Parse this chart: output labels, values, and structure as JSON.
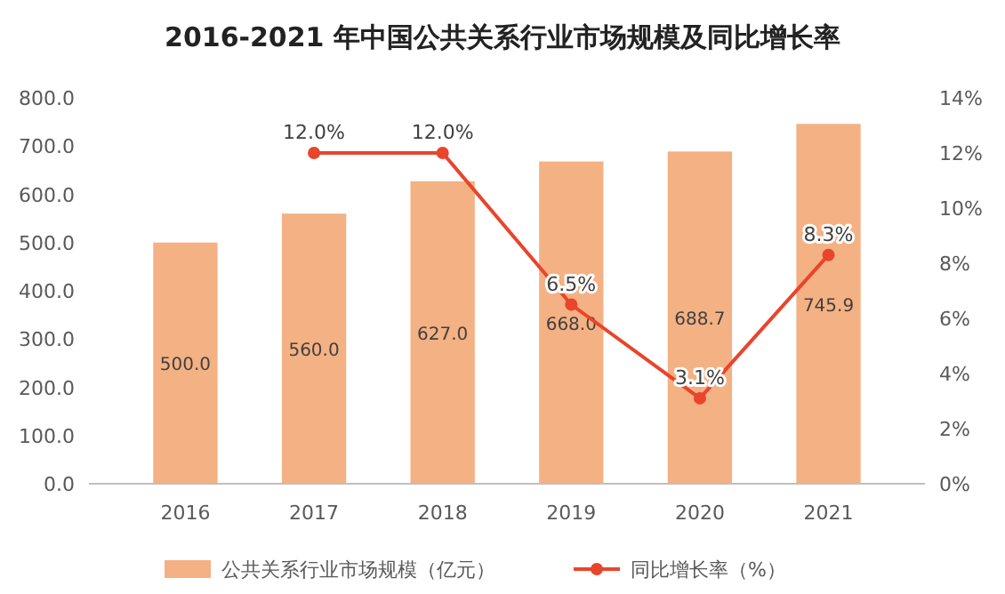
{
  "chart_data": {
    "type": "bar",
    "title": "2016-2021 年中国公共关系行业市场规模及同比增长率",
    "categories": [
      "2016",
      "2017",
      "2018",
      "2019",
      "2020",
      "2021"
    ],
    "series": [
      {
        "name": "公共关系行业市场规模（亿元）",
        "color": "#f4b183",
        "values": [
          500.0,
          560.0,
          627.0,
          668.0,
          688.7,
          745.9
        ],
        "value_labels": [
          "500.0",
          "560.0",
          "627.0",
          "668.0",
          "688.7",
          "745.9"
        ]
      },
      {
        "name": "同比增长率（%）",
        "type": "line",
        "axis": "y2",
        "color": "#e8452c",
        "marker": "circle",
        "values": [
          null,
          12.0,
          12.0,
          6.5,
          3.1,
          8.3
        ],
        "value_labels": [
          null,
          "12.0%",
          "12.0%",
          "6.5%",
          "3.1%",
          "8.3%"
        ]
      }
    ],
    "ylim": [
      0,
      800
    ],
    "yticks": [
      {
        "value": 0,
        "label": "0.0"
      },
      {
        "value": 100,
        "label": "100.0"
      },
      {
        "value": 200,
        "label": "200.0"
      },
      {
        "value": 300,
        "label": "300.0"
      },
      {
        "value": 400,
        "label": "400.0"
      },
      {
        "value": 500,
        "label": "500.0"
      },
      {
        "value": 600,
        "label": "600.0"
      },
      {
        "value": 700,
        "label": "700.0"
      },
      {
        "value": 800,
        "label": "800.0"
      }
    ],
    "y2lim": [
      0,
      14
    ],
    "y2ticks": [
      {
        "value": 0,
        "label": "0%"
      },
      {
        "value": 2,
        "label": "2%"
      },
      {
        "value": 4,
        "label": "4%"
      },
      {
        "value": 6,
        "label": "6%"
      },
      {
        "value": 8,
        "label": "8%"
      },
      {
        "value": 10,
        "label": "10%"
      },
      {
        "value": 12,
        "label": "12%"
      },
      {
        "value": 14,
        "label": "14%"
      }
    ],
    "legend": "bottom"
  }
}
